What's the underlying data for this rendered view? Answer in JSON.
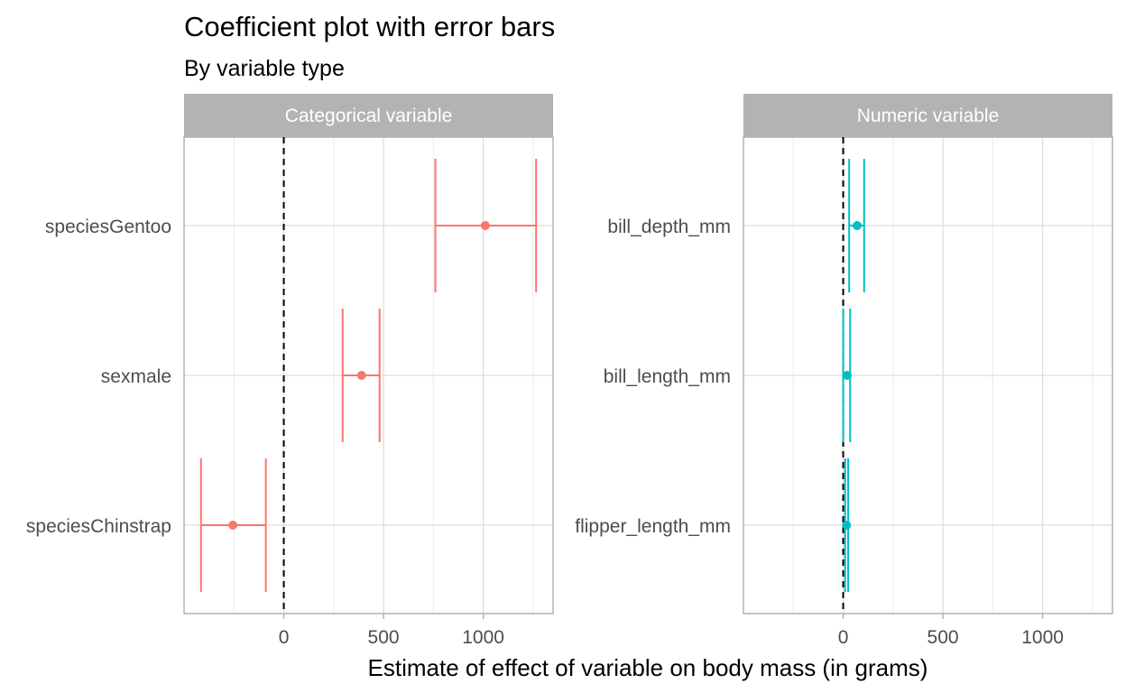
{
  "chart_data": {
    "type": "scatter",
    "title": "Coefficient plot with error bars",
    "subtitle": "By variable type",
    "xlabel": "Estimate of effect of variable on body mass (in grams)",
    "ylabel": "",
    "xlim": [
      -500,
      1350
    ],
    "x_ticks": [
      0,
      500,
      1000
    ],
    "grid": true,
    "reference_line": 0,
    "panels": [
      {
        "label": "Categorical variable",
        "color": "#F8766D",
        "terms": [
          {
            "term": "speciesGentoo",
            "estimate": 1010,
            "conf_low": 760,
            "conf_high": 1265
          },
          {
            "term": "sexmale",
            "estimate": 390,
            "conf_low": 295,
            "conf_high": 480
          },
          {
            "term": "speciesChinstrap",
            "estimate": -255,
            "conf_low": -415,
            "conf_high": -90
          }
        ]
      },
      {
        "label": "Numeric variable",
        "color": "#00BFC4",
        "terms": [
          {
            "term": "bill_depth_mm",
            "estimate": 70,
            "conf_low": 30,
            "conf_high": 105
          },
          {
            "term": "bill_length_mm",
            "estimate": 20,
            "conf_low": 0,
            "conf_high": 35
          },
          {
            "term": "flipper_length_mm",
            "estimate": 17,
            "conf_low": 10,
            "conf_high": 25
          }
        ]
      }
    ]
  }
}
